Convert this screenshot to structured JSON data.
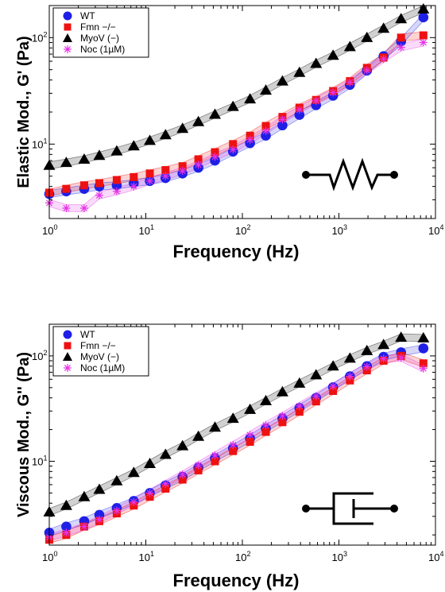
{
  "colors": {
    "WT": "#1f1fe6",
    "Fmn": "#ee1111",
    "MyoV": "#000000",
    "Noc": "#e533e5"
  },
  "chart_data": [
    {
      "type": "scatter",
      "title": "",
      "xlabel": "Frequency (Hz)",
      "ylabel": "Elastic Mod., G' (Pa)",
      "xscale": "log",
      "yscale": "log",
      "xlim": [
        1,
        10000
      ],
      "ylim": [
        2,
        200
      ],
      "xticks": [
        {
          "b": "10",
          "e": "0"
        },
        {
          "b": "10",
          "e": "1"
        },
        {
          "b": "10",
          "e": "2"
        },
        {
          "b": "10",
          "e": "3"
        },
        {
          "b": "10",
          "e": "4"
        }
      ],
      "yticks": [
        {
          "v": 10,
          "b": "10",
          "e": "1"
        },
        {
          "v": 100,
          "b": "10",
          "e": "2"
        }
      ],
      "legend": "top-left",
      "inset_icon": "spring-symbol",
      "series": [
        {
          "name": "WT",
          "marker": "circle",
          "x": [
            1,
            1.5,
            2.3,
            3.3,
            5,
            7.5,
            11,
            16,
            24,
            35,
            52,
            80,
            120,
            175,
            260,
            390,
            580,
            870,
            1300,
            1950,
            2900,
            4400,
            7500
          ],
          "y": [
            3.4,
            3.6,
            3.8,
            4.0,
            4.1,
            4.3,
            4.5,
            4.8,
            5.3,
            6.0,
            7.0,
            8.5,
            10.2,
            12.0,
            15.0,
            18.8,
            23.2,
            28.5,
            36.0,
            49.0,
            67.0,
            92.0,
            155.0
          ]
        },
        {
          "name": "Fmn −/−",
          "marker": "square",
          "x": [
            1,
            1.5,
            2.3,
            3.3,
            5,
            7.5,
            11,
            16,
            24,
            35,
            52,
            80,
            120,
            175,
            260,
            390,
            580,
            870,
            1300,
            1950,
            2900,
            4400,
            7500
          ],
          "y": [
            3.5,
            3.8,
            4.1,
            4.3,
            4.6,
            4.9,
            5.3,
            5.7,
            6.2,
            7.2,
            8.4,
            10.0,
            12.0,
            14.8,
            18.0,
            22.0,
            26.0,
            31.5,
            39.0,
            52.0,
            65.0,
            100.0,
            105.0
          ]
        },
        {
          "name": "MyoV (−)",
          "marker": "triangle",
          "x": [
            1,
            1.5,
            2.3,
            3.3,
            5,
            7.5,
            11,
            16,
            24,
            35,
            52,
            80,
            120,
            175,
            260,
            390,
            580,
            870,
            1300,
            1950,
            2900,
            4400,
            7500
          ],
          "y": [
            6.3,
            6.7,
            7.2,
            7.8,
            8.6,
            9.6,
            10.8,
            12.2,
            14.0,
            16.2,
            19.0,
            22.5,
            26.5,
            32.0,
            39.0,
            47.0,
            57.0,
            68.0,
            82.0,
            100.0,
            122.0,
            150.0,
            185.0
          ]
        },
        {
          "name": "Noc (1µM)",
          "marker": "asterisk",
          "x": [
            1,
            1.5,
            2.3,
            3.3,
            5,
            7.5,
            11,
            16,
            24,
            35,
            52,
            80,
            120,
            175,
            260,
            390,
            580,
            870,
            1300,
            1950,
            2900,
            4400,
            7500
          ],
          "y": [
            2.8,
            2.5,
            2.5,
            3.3,
            3.6,
            4.0,
            4.5,
            5.0,
            5.6,
            6.4,
            7.6,
            8.9,
            11.0,
            13.3,
            17.0,
            21.0,
            25.5,
            30.5,
            38.0,
            49.0,
            63.0,
            81.0,
            90.0
          ]
        }
      ]
    },
    {
      "type": "scatter",
      "title": "",
      "xlabel": "Frequency (Hz)",
      "ylabel": "Viscous Mod., G'' (Pa)",
      "xscale": "log",
      "yscale": "log",
      "xlim": [
        1,
        10000
      ],
      "ylim": [
        1.6,
        200
      ],
      "xticks": [
        {
          "b": "10",
          "e": "0"
        },
        {
          "b": "10",
          "e": "1"
        },
        {
          "b": "10",
          "e": "2"
        },
        {
          "b": "10",
          "e": "3"
        },
        {
          "b": "10",
          "e": "4"
        }
      ],
      "yticks": [
        {
          "v": 10,
          "b": "10",
          "e": "1"
        },
        {
          "v": 100,
          "b": "10",
          "e": "2"
        }
      ],
      "legend": "top-left",
      "inset_icon": "dashpot-symbol",
      "series": [
        {
          "name": "WT",
          "marker": "circle",
          "x": [
            1,
            1.5,
            2.3,
            3.3,
            5,
            7.5,
            11,
            16,
            24,
            35,
            52,
            80,
            120,
            175,
            260,
            390,
            580,
            870,
            1300,
            1950,
            2900,
            4400,
            7500
          ],
          "y": [
            2.1,
            2.4,
            2.7,
            3.1,
            3.6,
            4.2,
            5.0,
            5.9,
            7.1,
            8.7,
            10.7,
            13.3,
            16.5,
            20.5,
            25.5,
            32.0,
            40.0,
            50.5,
            64.0,
            80.0,
            98.0,
            108.0,
            118.0
          ]
        },
        {
          "name": "Fmn −/−",
          "marker": "square",
          "x": [
            1,
            1.5,
            2.3,
            3.3,
            5,
            7.5,
            11,
            16,
            24,
            35,
            52,
            80,
            120,
            175,
            260,
            390,
            580,
            870,
            1300,
            1950,
            2900,
            4400,
            7500
          ],
          "y": [
            1.8,
            2.0,
            2.4,
            2.7,
            3.2,
            3.8,
            4.6,
            5.5,
            6.7,
            8.2,
            10.0,
            12.5,
            15.3,
            19.0,
            23.5,
            29.5,
            37.0,
            46.5,
            58.5,
            73.0,
            90.0,
            100.0,
            85.0
          ]
        },
        {
          "name": "MyoV (−)",
          "marker": "triangle",
          "x": [
            1,
            1.5,
            2.3,
            3.3,
            5,
            7.5,
            11,
            16,
            24,
            35,
            52,
            80,
            120,
            175,
            260,
            390,
            580,
            870,
            1300,
            1950,
            2900,
            4400,
            7500
          ],
          "y": [
            3.3,
            3.8,
            4.6,
            5.4,
            6.5,
            7.8,
            9.5,
            11.6,
            14.0,
            17.2,
            21.0,
            25.5,
            31.0,
            37.5,
            45.5,
            55.0,
            66.0,
            80.0,
            95.0,
            112.0,
            128.0,
            150.0,
            148.0
          ]
        },
        {
          "name": "Noc (1µM)",
          "marker": "asterisk",
          "x": [
            1,
            1.5,
            2.3,
            3.3,
            5,
            7.5,
            11,
            16,
            24,
            35,
            52,
            80,
            120,
            175,
            260,
            390,
            580,
            870,
            1300,
            1950,
            2900,
            4400,
            7500
          ],
          "y": [
            1.9,
            2.1,
            2.4,
            2.8,
            3.4,
            4.1,
            5.0,
            6.1,
            7.5,
            9.2,
            11.4,
            14.3,
            17.8,
            22.0,
            27.0,
            33.5,
            41.5,
            51.5,
            64.0,
            79.0,
            94.0,
            96.0,
            76.0
          ]
        }
      ]
    }
  ]
}
